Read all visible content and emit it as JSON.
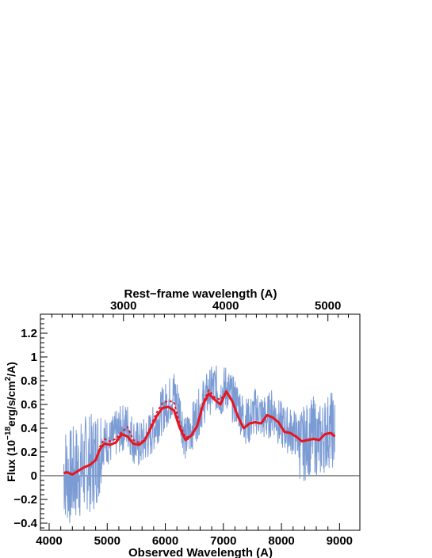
{
  "chart_data": {
    "type": "line",
    "title": "",
    "xlabel": "Observed Wavelength (A)",
    "x2label": "Rest−frame wavelength (A)",
    "ylabel": "Flux (10^-18 erg/s/cm^2/A)",
    "ylabel_parts": {
      "prefix": "Flux (10",
      "exp1": "−18",
      "mid": "erg/s/cm",
      "exp2": "2",
      "suffix": "/A)"
    },
    "xlim": [
      3850,
      9350
    ],
    "ylim": [
      -0.46,
      1.36
    ],
    "x_ticks": [
      "4000",
      "5000",
      "6000",
      "7000",
      "8000",
      "9000"
    ],
    "x2_ticks": [
      "3000",
      "4000",
      "5000"
    ],
    "y_ticks": [
      "−0.4",
      "−0.2",
      "0",
      "0.2",
      "0.4",
      "0.6",
      "0.8",
      "1",
      "1.2"
    ],
    "zero_line": true,
    "grid": false,
    "colors": {
      "spectrum": "#7b9bd4",
      "model": "#e8141e",
      "axis": "#000000"
    },
    "series": [
      {
        "style": "noisy-spectrum",
        "x": [
          4250,
          4350,
          4450,
          4550,
          4650,
          4750,
          4850,
          4950,
          5050,
          5150,
          5250,
          5350,
          5450,
          5550,
          5650,
          5750,
          5850,
          5950,
          6050,
          6150,
          6250,
          6350,
          6450,
          6550,
          6650,
          6750,
          6850,
          6950,
          7050,
          7150,
          7250,
          7350,
          7450,
          7550,
          7650,
          7750,
          7850,
          7950,
          8050,
          8150,
          8250,
          8350,
          8450,
          8550,
          8650,
          8750,
          8850,
          8920
        ],
        "y": [
          0.05,
          -0.02,
          0.02,
          0.05,
          0.12,
          0.1,
          0.2,
          0.3,
          0.28,
          0.35,
          0.4,
          0.42,
          0.3,
          0.25,
          0.3,
          0.35,
          0.45,
          0.55,
          0.62,
          0.7,
          0.55,
          0.3,
          0.4,
          0.5,
          0.62,
          0.7,
          0.75,
          0.68,
          0.75,
          0.65,
          0.6,
          0.48,
          0.45,
          0.55,
          0.5,
          0.48,
          0.55,
          0.45,
          0.4,
          0.38,
          0.35,
          0.25,
          0.3,
          0.35,
          0.28,
          0.35,
          0.4,
          0.35
        ]
      },
      {
        "style": "model-solid",
        "x": [
          4250,
          4300,
          4400,
          4500,
          4600,
          4700,
          4800,
          4870,
          4950,
          5050,
          5150,
          5250,
          5350,
          5450,
          5550,
          5650,
          5750,
          5850,
          5950,
          6050,
          6150,
          6250,
          6350,
          6450,
          6550,
          6650,
          6750,
          6850,
          6950,
          7050,
          7150,
          7250,
          7350,
          7450,
          7550,
          7650,
          7750,
          7850,
          7950,
          8050,
          8150,
          8250,
          8350,
          8450,
          8550,
          8650,
          8750,
          8850,
          8920
        ],
        "y": [
          0.02,
          0.03,
          0.01,
          0.04,
          0.07,
          0.09,
          0.13,
          0.22,
          0.27,
          0.26,
          0.28,
          0.35,
          0.33,
          0.27,
          0.26,
          0.3,
          0.4,
          0.5,
          0.57,
          0.58,
          0.55,
          0.4,
          0.3,
          0.34,
          0.42,
          0.6,
          0.69,
          0.64,
          0.6,
          0.71,
          0.63,
          0.5,
          0.4,
          0.44,
          0.45,
          0.44,
          0.51,
          0.49,
          0.45,
          0.37,
          0.36,
          0.33,
          0.29,
          0.3,
          0.31,
          0.3,
          0.35,
          0.36,
          0.33
        ]
      },
      {
        "style": "model-dotted",
        "x": [
          4870,
          4950,
          5050,
          5150,
          5250,
          5350,
          5450,
          5550,
          5650,
          5750,
          5850,
          5950,
          6050,
          6150,
          6250,
          6350,
          6450,
          6550,
          6650,
          6750,
          6850,
          6950,
          7050,
          7150
        ],
        "y": [
          0.24,
          0.31,
          0.29,
          0.31,
          0.37,
          0.41,
          0.3,
          0.28,
          0.3,
          0.42,
          0.53,
          0.61,
          0.63,
          0.62,
          0.43,
          0.32,
          0.34,
          0.43,
          0.62,
          0.72,
          0.66,
          0.64,
          0.71,
          0.63
        ]
      }
    ]
  }
}
